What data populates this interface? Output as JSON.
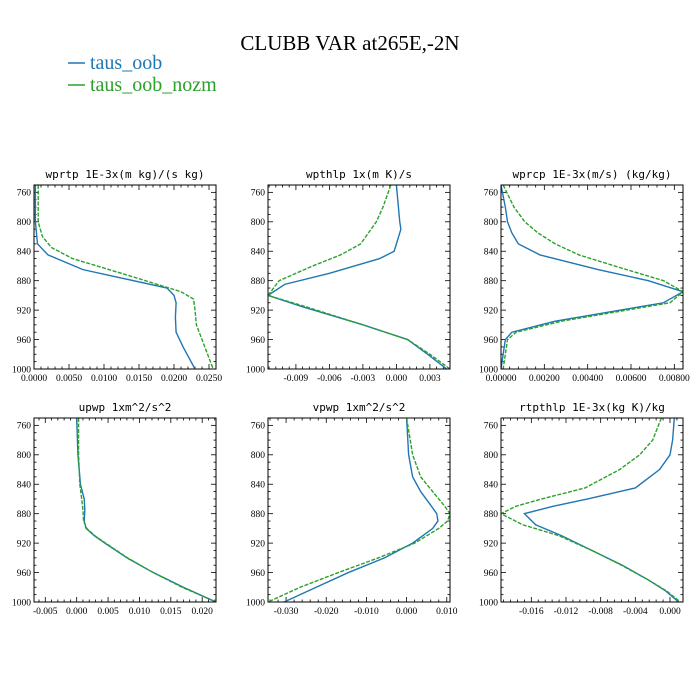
{
  "title": "CLUBB VAR at265E,-2N",
  "legend": [
    {
      "label": "taus_oob",
      "color": "#1f77b4"
    },
    {
      "label": "taus_oob_nozm",
      "color": "#2ca02c"
    }
  ],
  "series_styles": [
    {
      "color": "#1f77b4",
      "dash": "none"
    },
    {
      "color": "#2ca02c",
      "dash": "dashed"
    }
  ],
  "chart_data": [
    {
      "type": "line",
      "title": "wprtp 1E-3x(m kg)/(s kg)",
      "xlim": [
        0.0,
        0.026
      ],
      "ylim": [
        1000,
        750
      ],
      "xticks": [
        0.0,
        0.005,
        0.01,
        0.015,
        0.02,
        0.025
      ],
      "xtick_labels": [
        "0.0000",
        "0.0050",
        "0.0100",
        "0.0150",
        "0.0200",
        "0.0250"
      ],
      "yticks": [
        760,
        800,
        840,
        880,
        920,
        960,
        1000
      ],
      "series": [
        {
          "name": "taus_oob",
          "y": [
            750,
            800,
            830,
            845,
            865,
            890,
            900,
            910,
            930,
            950,
            970,
            1000
          ],
          "x": [
            0.0002,
            0.0002,
            0.0005,
            0.002,
            0.007,
            0.019,
            0.02,
            0.0203,
            0.0202,
            0.0203,
            0.0213,
            0.023
          ]
        },
        {
          "name": "taus_oob_nozm",
          "y": [
            750,
            800,
            820,
            835,
            850,
            870,
            895,
            905,
            920,
            940,
            960,
            980,
            1000
          ],
          "x": [
            0.0006,
            0.0006,
            0.0012,
            0.0025,
            0.0055,
            0.0125,
            0.021,
            0.0228,
            0.023,
            0.0232,
            0.024,
            0.0248,
            0.0256
          ]
        }
      ]
    },
    {
      "type": "line",
      "title": "wpthlp 1x(m K)/s",
      "xlim": [
        -0.0115,
        0.0048
      ],
      "ylim": [
        1000,
        750
      ],
      "xticks": [
        -0.009,
        -0.006,
        -0.003,
        0.0,
        0.003
      ],
      "xtick_labels": [
        "-0.009",
        "-0.006",
        "-0.003",
        "0.000",
        "0.003"
      ],
      "yticks": [
        760,
        800,
        840,
        880,
        920,
        960,
        1000
      ],
      "series": [
        {
          "name": "taus_oob",
          "y": [
            750,
            800,
            810,
            840,
            850,
            870,
            885,
            900,
            915,
            940,
            960,
            980,
            1000
          ],
          "x": [
            0.0,
            0.0003,
            0.0004,
            -0.0002,
            -0.0015,
            -0.006,
            -0.01,
            -0.0115,
            -0.0085,
            -0.003,
            0.001,
            0.0028,
            0.0045
          ]
        },
        {
          "name": "taus_oob_nozm",
          "y": [
            750,
            780,
            800,
            830,
            845,
            860,
            880,
            900,
            915,
            940,
            960,
            980,
            1000
          ],
          "x": [
            -0.0005,
            -0.0012,
            -0.0018,
            -0.0032,
            -0.005,
            -0.0075,
            -0.0105,
            -0.0115,
            -0.0082,
            -0.003,
            0.001,
            0.003,
            0.0048
          ]
        }
      ]
    },
    {
      "type": "line",
      "title": "wprcp 1E-3x(m/s) (kg/kg)",
      "xlim": [
        0.0,
        0.0084
      ],
      "ylim": [
        1000,
        750
      ],
      "xticks": [
        0.0,
        0.002,
        0.004,
        0.006,
        0.008
      ],
      "xtick_labels": [
        "0.00000",
        "0.00200",
        "0.00400",
        "0.00600",
        "0.00800"
      ],
      "yticks": [
        760,
        800,
        840,
        880,
        920,
        960,
        1000
      ],
      "series": [
        {
          "name": "taus_oob",
          "y": [
            750,
            780,
            800,
            815,
            830,
            845,
            865,
            880,
            895,
            910,
            935,
            950,
            960,
            1000
          ],
          "x": [
            0.0,
            0.0002,
            0.0003,
            0.0005,
            0.0008,
            0.0018,
            0.0045,
            0.0068,
            0.0084,
            0.0075,
            0.0025,
            0.0005,
            0.0002,
            0.0
          ]
        },
        {
          "name": "taus_oob_nozm",
          "y": [
            750,
            780,
            800,
            815,
            830,
            845,
            865,
            880,
            895,
            910,
            935,
            950,
            960,
            1000
          ],
          "x": [
            0.0001,
            0.0006,
            0.0011,
            0.0017,
            0.0025,
            0.0036,
            0.0058,
            0.0075,
            0.0084,
            0.0078,
            0.0028,
            0.0007,
            0.0003,
            0.0001
          ]
        }
      ]
    },
    {
      "type": "line",
      "title": "upwp 1xm^2/s^2",
      "xlim": [
        -0.0068,
        0.0222
      ],
      "ylim": [
        1000,
        750
      ],
      "xticks": [
        -0.005,
        0.0,
        0.005,
        0.01,
        0.015,
        0.02
      ],
      "xtick_labels": [
        "-0.005",
        "0.000",
        "0.005",
        "0.010",
        "0.015",
        "0.020"
      ],
      "yticks": [
        760,
        800,
        840,
        880,
        920,
        960,
        1000
      ],
      "series": [
        {
          "name": "taus_oob",
          "y": [
            750,
            800,
            840,
            860,
            875,
            890,
            900,
            910,
            920,
            940,
            960,
            980,
            1000
          ],
          "x": [
            0.0,
            0.0002,
            0.0006,
            0.0012,
            0.0013,
            0.0012,
            0.0015,
            0.0028,
            0.0045,
            0.008,
            0.0122,
            0.017,
            0.0222
          ]
        },
        {
          "name": "taus_oob_nozm",
          "y": [
            750,
            800,
            840,
            860,
            875,
            890,
            900,
            910,
            920,
            940,
            960,
            980,
            1000
          ],
          "x": [
            0.0003,
            0.0003,
            0.0005,
            0.0008,
            0.001,
            0.0011,
            0.0016,
            0.0029,
            0.0046,
            0.0081,
            0.0122,
            0.0168,
            0.0222
          ]
        }
      ]
    },
    {
      "type": "line",
      "title": "vpwp 1xm^2/s^2",
      "xlim": [
        -0.0345,
        0.0108
      ],
      "ylim": [
        1000,
        750
      ],
      "xticks": [
        -0.03,
        -0.02,
        -0.01,
        0.0,
        0.01
      ],
      "xtick_labels": [
        "-0.030",
        "-0.020",
        "-0.010",
        "0.000",
        "0.010"
      ],
      "yticks": [
        760,
        800,
        840,
        880,
        920,
        960,
        1000
      ],
      "series": [
        {
          "name": "taus_oob",
          "y": [
            750,
            800,
            830,
            850,
            870,
            880,
            890,
            900,
            920,
            940,
            960,
            980,
            1000
          ],
          "x": [
            0.0,
            0.0005,
            0.0015,
            0.0035,
            0.0062,
            0.0075,
            0.0078,
            0.0065,
            0.0015,
            -0.0055,
            -0.0145,
            -0.0225,
            -0.0305
          ]
        },
        {
          "name": "taus_oob_nozm",
          "y": [
            750,
            800,
            830,
            850,
            870,
            880,
            890,
            900,
            920,
            940,
            960,
            980,
            1000
          ],
          "x": [
            0.0,
            0.0015,
            0.0035,
            0.0065,
            0.0095,
            0.0108,
            0.0102,
            0.008,
            0.002,
            -0.007,
            -0.017,
            -0.0265,
            -0.0345
          ]
        }
      ]
    },
    {
      "type": "line",
      "title": "rtpthlp 1E-3x(kg K)/kg",
      "xlim": [
        -0.0195,
        0.0015
      ],
      "ylim": [
        1000,
        750
      ],
      "xticks": [
        -0.016,
        -0.012,
        -0.008,
        -0.004,
        0.0
      ],
      "xtick_labels": [
        "-0.016",
        "-0.012",
        "-0.008",
        "-0.004",
        "0.000"
      ],
      "yticks": [
        760,
        800,
        840,
        880,
        920,
        960,
        1000
      ],
      "series": [
        {
          "name": "taus_oob",
          "y": [
            750,
            780,
            800,
            820,
            845,
            860,
            870,
            880,
            895,
            910,
            930,
            950,
            970,
            985,
            1000
          ],
          "x": [
            0.0005,
            0.0003,
            0.0,
            -0.0012,
            -0.004,
            -0.0095,
            -0.0135,
            -0.0168,
            -0.0155,
            -0.0125,
            -0.009,
            -0.0055,
            -0.0025,
            -0.0005,
            0.001
          ]
        },
        {
          "name": "taus_oob_nozm",
          "y": [
            750,
            780,
            800,
            820,
            845,
            860,
            870,
            880,
            895,
            910,
            930,
            950,
            970,
            985,
            1000
          ],
          "x": [
            -0.001,
            -0.002,
            -0.0035,
            -0.0058,
            -0.0098,
            -0.0148,
            -0.0178,
            -0.0195,
            -0.017,
            -0.0128,
            -0.009,
            -0.0056,
            -0.0025,
            -0.0004,
            0.0012
          ]
        }
      ]
    }
  ]
}
